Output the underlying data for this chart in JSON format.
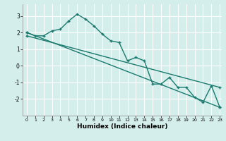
{
  "title": "",
  "xlabel": "Humidex (Indice chaleur)",
  "ylabel": "",
  "bg_color": "#d4eeeb",
  "grid_color": "#ffffff",
  "line_color": "#1a7a6e",
  "xlim": [
    -0.5,
    23.2
  ],
  "ylim": [
    -3.0,
    3.7
  ],
  "xticks": [
    0,
    1,
    2,
    3,
    4,
    5,
    6,
    7,
    8,
    9,
    10,
    11,
    12,
    13,
    14,
    15,
    16,
    17,
    18,
    19,
    20,
    21,
    22,
    23
  ],
  "yticks": [
    -2,
    -1,
    0,
    1,
    2,
    3
  ],
  "series1_x": [
    0,
    1,
    2,
    3,
    4,
    5,
    6,
    7,
    8,
    9,
    10,
    11,
    12,
    13,
    14,
    15,
    16,
    17,
    18,
    19,
    20,
    21,
    22,
    23
  ],
  "series1_y": [
    2.0,
    1.8,
    1.8,
    2.1,
    2.2,
    2.7,
    3.1,
    2.8,
    2.4,
    1.9,
    1.5,
    1.4,
    0.3,
    0.5,
    0.3,
    -1.1,
    -1.1,
    -0.7,
    -1.3,
    -1.3,
    -1.9,
    -2.2,
    -1.2,
    -2.5
  ],
  "series2_x": [
    0,
    23
  ],
  "series2_y": [
    2.0,
    -2.5
  ],
  "series3_x": [
    0,
    23
  ],
  "series3_y": [
    1.8,
    -1.3
  ]
}
